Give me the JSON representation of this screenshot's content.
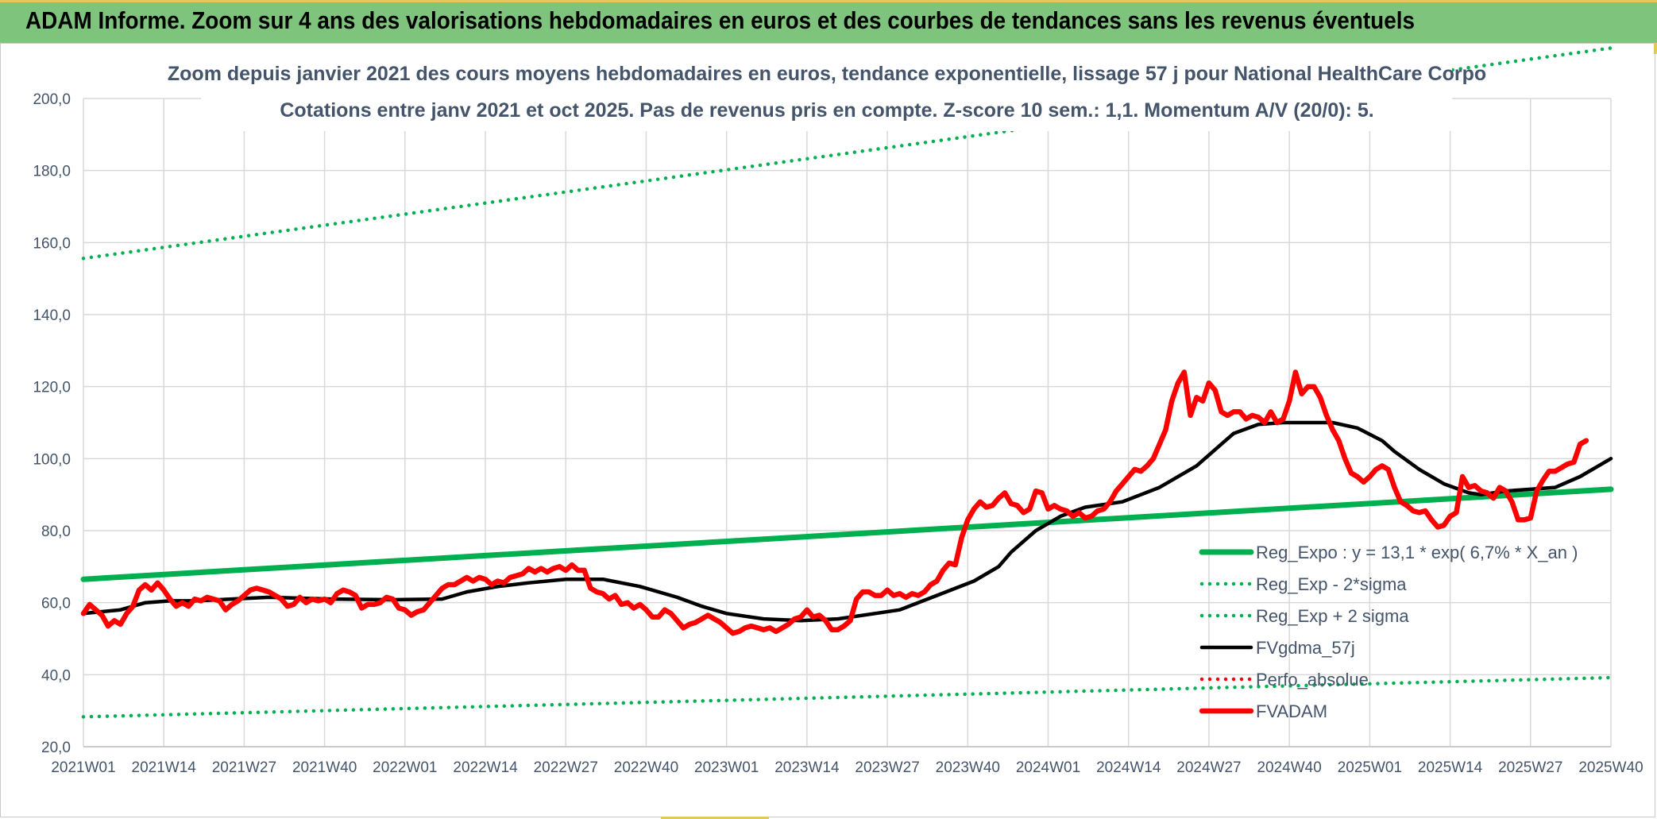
{
  "header": {
    "title": "ADAM Informe. Zoom sur 4 ans des valorisations hebdomadaires en euros et des courbes de tendances sans les revenus éventuels"
  },
  "colors": {
    "header_bg": "#7fc47d",
    "reg_expo": "#00b050",
    "fvgdma": "#000000",
    "fvadam": "#ff0000",
    "perfo": "#ff0000"
  },
  "chart_data": {
    "type": "line",
    "title": "Zoom depuis janvier 2021 des cours moyens hebdomadaires en euros, tendance exponentielle, lissage 57 j pour National HealthCare Corpo",
    "subtitle": "Cotations entre janv 2021 et oct 2025. Pas de revenus pris en compte. Z-score 10 sem.: 1,1. Momentum A/V (20/0): 5.",
    "xlabel": "",
    "ylabel": "",
    "ylim": [
      20,
      200
    ],
    "y_ticks": [
      "20,0",
      "40,0",
      "60,0",
      "80,0",
      "100,0",
      "120,0",
      "140,0",
      "160,0",
      "180,0",
      "200,0"
    ],
    "x_ticks": [
      "2021W01",
      "2021W14",
      "2021W27",
      "2021W40",
      "2022W01",
      "2022W14",
      "2022W27",
      "2022W40",
      "2023W01",
      "2023W14",
      "2023W27",
      "2023W40",
      "2024W01",
      "2024W14",
      "2024W27",
      "2024W40",
      "2025W01",
      "2025W14",
      "2025W27",
      "2025W40"
    ],
    "x_range_weeks": [
      0,
      247
    ],
    "grid": true,
    "legend_position": "bottom-right",
    "series": [
      {
        "name": "Reg_Expo : y = 13,1 * exp( 6,7% *  X_an )",
        "style": "solid",
        "color": "#00b050",
        "points": [
          [
            0,
            66.5
          ],
          [
            247,
            91.5
          ]
        ]
      },
      {
        "name": "Reg_Exp - 2*sigma",
        "style": "dotted",
        "color": "#00b050",
        "points": [
          [
            0,
            28.3
          ],
          [
            247,
            39.2
          ]
        ]
      },
      {
        "name": "Reg_Exp + 2 sigma",
        "style": "dotted",
        "color": "#00b050",
        "points": [
          [
            0,
            155.6
          ],
          [
            247,
            214
          ]
        ]
      },
      {
        "name": "FVgdma_57j",
        "style": "solid",
        "color": "#000000",
        "points": [
          [
            0,
            57
          ],
          [
            6,
            58
          ],
          [
            10,
            60
          ],
          [
            14,
            60.5
          ],
          [
            18,
            60.5
          ],
          [
            24,
            61
          ],
          [
            30,
            61.5
          ],
          [
            40,
            61
          ],
          [
            50,
            60.8
          ],
          [
            58,
            61
          ],
          [
            62,
            63
          ],
          [
            67,
            64.5
          ],
          [
            72,
            65.5
          ],
          [
            78,
            66.5
          ],
          [
            84,
            66.5
          ],
          [
            90,
            64.5
          ],
          [
            96,
            61.5
          ],
          [
            100,
            59
          ],
          [
            104,
            57
          ],
          [
            110,
            55.5
          ],
          [
            116,
            55
          ],
          [
            122,
            55.5
          ],
          [
            128,
            57
          ],
          [
            132,
            58
          ],
          [
            138,
            62
          ],
          [
            144,
            66
          ],
          [
            148,
            70
          ],
          [
            150,
            74
          ],
          [
            154,
            80
          ],
          [
            158,
            84
          ],
          [
            162,
            86.5
          ],
          [
            168,
            88
          ],
          [
            174,
            92
          ],
          [
            180,
            98
          ],
          [
            184,
            104
          ],
          [
            186,
            107
          ],
          [
            190,
            109.5
          ],
          [
            194,
            110
          ],
          [
            198,
            110
          ],
          [
            202,
            110
          ],
          [
            206,
            108.5
          ],
          [
            210,
            105
          ],
          [
            212,
            102
          ],
          [
            216,
            97
          ],
          [
            220,
            93
          ],
          [
            224,
            90.5
          ],
          [
            226,
            90
          ],
          [
            230,
            91
          ],
          [
            234,
            91.5
          ],
          [
            238,
            92
          ],
          [
            242,
            95
          ],
          [
            245,
            98
          ],
          [
            247,
            100
          ]
        ]
      },
      {
        "name": "Perfo_absolue",
        "style": "dotted",
        "color": "#ff0000",
        "points": []
      },
      {
        "name": "FVADAM",
        "style": "solid",
        "color": "#ff0000",
        "points": [
          [
            0,
            57
          ],
          [
            1,
            59.5
          ],
          [
            2,
            58
          ],
          [
            3,
            56.5
          ],
          [
            4,
            53.5
          ],
          [
            5,
            55
          ],
          [
            6,
            54
          ],
          [
            7,
            57
          ],
          [
            8,
            59
          ],
          [
            9,
            63.5
          ],
          [
            10,
            65
          ],
          [
            11,
            63.5
          ],
          [
            12,
            65.5
          ],
          [
            13,
            63.5
          ],
          [
            14,
            61
          ],
          [
            15,
            59
          ],
          [
            16,
            60
          ],
          [
            17,
            59
          ],
          [
            18,
            61
          ],
          [
            19,
            60.5
          ],
          [
            20,
            61.5
          ],
          [
            21,
            61
          ],
          [
            22,
            60.5
          ],
          [
            23,
            58
          ],
          [
            24,
            59.5
          ],
          [
            25,
            60.5
          ],
          [
            26,
            62
          ],
          [
            27,
            63.5
          ],
          [
            28,
            64
          ],
          [
            29,
            63.5
          ],
          [
            30,
            63
          ],
          [
            31,
            62
          ],
          [
            32,
            61
          ],
          [
            33,
            59
          ],
          [
            34,
            59.5
          ],
          [
            35,
            61.5
          ],
          [
            36,
            60
          ],
          [
            37,
            61
          ],
          [
            38,
            60.5
          ],
          [
            39,
            61
          ],
          [
            40,
            60
          ],
          [
            41,
            62.5
          ],
          [
            42,
            63.5
          ],
          [
            43,
            63
          ],
          [
            44,
            62
          ],
          [
            45,
            58.5
          ],
          [
            46,
            59.5
          ],
          [
            47,
            59.5
          ],
          [
            48,
            60
          ],
          [
            49,
            61.5
          ],
          [
            50,
            61
          ],
          [
            51,
            58.5
          ],
          [
            52,
            58
          ],
          [
            53,
            56.5
          ],
          [
            54,
            57.5
          ],
          [
            55,
            58
          ],
          [
            56,
            60
          ],
          [
            57,
            62
          ],
          [
            58,
            64
          ],
          [
            59,
            65
          ],
          [
            60,
            65
          ],
          [
            61,
            66
          ],
          [
            62,
            67
          ],
          [
            63,
            66
          ],
          [
            64,
            67
          ],
          [
            65,
            66.5
          ],
          [
            66,
            65
          ],
          [
            67,
            66
          ],
          [
            68,
            65.5
          ],
          [
            69,
            67
          ],
          [
            70,
            67.5
          ],
          [
            71,
            68
          ],
          [
            72,
            69.5
          ],
          [
            73,
            68.5
          ],
          [
            74,
            69.5
          ],
          [
            75,
            68.5
          ],
          [
            76,
            69.5
          ],
          [
            77,
            70
          ],
          [
            78,
            69
          ],
          [
            79,
            70.5
          ],
          [
            80,
            69
          ],
          [
            81,
            69
          ],
          [
            82,
            64
          ],
          [
            83,
            63
          ],
          [
            84,
            62.5
          ],
          [
            85,
            61
          ],
          [
            86,
            62
          ],
          [
            87,
            59.5
          ],
          [
            88,
            60
          ],
          [
            89,
            58.5
          ],
          [
            90,
            59.5
          ],
          [
            91,
            58
          ],
          [
            92,
            56
          ],
          [
            93,
            56
          ],
          [
            94,
            58
          ],
          [
            95,
            57
          ],
          [
            96,
            55
          ],
          [
            97,
            53
          ],
          [
            98,
            54
          ],
          [
            99,
            54.5
          ],
          [
            100,
            55.5
          ],
          [
            101,
            56.5
          ],
          [
            102,
            55.5
          ],
          [
            103,
            54.5
          ],
          [
            104,
            53
          ],
          [
            105,
            51.5
          ],
          [
            106,
            52
          ],
          [
            107,
            53
          ],
          [
            108,
            53.5
          ],
          [
            109,
            53
          ],
          [
            110,
            52.5
          ],
          [
            111,
            53
          ],
          [
            112,
            52
          ],
          [
            113,
            53
          ],
          [
            114,
            54
          ],
          [
            115,
            55.5
          ],
          [
            116,
            56
          ],
          [
            117,
            58
          ],
          [
            118,
            56
          ],
          [
            119,
            56.5
          ],
          [
            120,
            55
          ],
          [
            121,
            52.5
          ],
          [
            122,
            52.5
          ],
          [
            123,
            53.5
          ],
          [
            124,
            55
          ],
          [
            125,
            61
          ],
          [
            126,
            63
          ],
          [
            127,
            63
          ],
          [
            128,
            62
          ],
          [
            129,
            62
          ],
          [
            130,
            63.5
          ],
          [
            131,
            62
          ],
          [
            132,
            62.5
          ],
          [
            133,
            61.5
          ],
          [
            134,
            62.5
          ],
          [
            135,
            62
          ],
          [
            136,
            63
          ],
          [
            137,
            65
          ],
          [
            138,
            66
          ],
          [
            139,
            69
          ],
          [
            140,
            71
          ],
          [
            141,
            70.5
          ],
          [
            142,
            78
          ],
          [
            143,
            83
          ],
          [
            144,
            86
          ],
          [
            145,
            88
          ],
          [
            146,
            86.5
          ],
          [
            147,
            87
          ],
          [
            148,
            89
          ],
          [
            149,
            90.5
          ],
          [
            150,
            87.5
          ],
          [
            151,
            87
          ],
          [
            152,
            85
          ],
          [
            153,
            86
          ],
          [
            154,
            91
          ],
          [
            155,
            90.5
          ],
          [
            156,
            86
          ],
          [
            157,
            87
          ],
          [
            158,
            86
          ],
          [
            159,
            85.5
          ],
          [
            160,
            84
          ],
          [
            161,
            85
          ],
          [
            162,
            83.5
          ],
          [
            163,
            84
          ],
          [
            164,
            85.5
          ],
          [
            165,
            86
          ],
          [
            166,
            88
          ],
          [
            167,
            91
          ],
          [
            168,
            93
          ],
          [
            169,
            95
          ],
          [
            170,
            97
          ],
          [
            171,
            96.5
          ],
          [
            172,
            98
          ],
          [
            173,
            100
          ],
          [
            174,
            104
          ],
          [
            175,
            108
          ],
          [
            176,
            116
          ],
          [
            177,
            121
          ],
          [
            178,
            124
          ],
          [
            179,
            112
          ],
          [
            180,
            117
          ],
          [
            181,
            116
          ],
          [
            182,
            121
          ],
          [
            183,
            119
          ],
          [
            184,
            113
          ],
          [
            185,
            112
          ],
          [
            186,
            113
          ],
          [
            187,
            113
          ],
          [
            188,
            111
          ],
          [
            189,
            112
          ],
          [
            190,
            111.5
          ],
          [
            191,
            110
          ],
          [
            192,
            113
          ],
          [
            193,
            110
          ],
          [
            194,
            111
          ],
          [
            195,
            116
          ],
          [
            196,
            124
          ],
          [
            197,
            118
          ],
          [
            198,
            120
          ],
          [
            199,
            120
          ],
          [
            200,
            117
          ],
          [
            201,
            112
          ],
          [
            202,
            108
          ],
          [
            203,
            105
          ],
          [
            204,
            100
          ],
          [
            205,
            96
          ],
          [
            206,
            95
          ],
          [
            207,
            93.5
          ],
          [
            208,
            95
          ],
          [
            209,
            97
          ],
          [
            210,
            98
          ],
          [
            211,
            97
          ],
          [
            212,
            92
          ],
          [
            213,
            88
          ],
          [
            214,
            87
          ],
          [
            215,
            85.5
          ],
          [
            216,
            85
          ],
          [
            217,
            85.5
          ],
          [
            218,
            83
          ],
          [
            219,
            81
          ],
          [
            220,
            81.5
          ],
          [
            221,
            84
          ],
          [
            222,
            85
          ],
          [
            223,
            95
          ],
          [
            224,
            92
          ],
          [
            225,
            92.5
          ],
          [
            226,
            91
          ],
          [
            227,
            90.5
          ],
          [
            228,
            89
          ],
          [
            229,
            92
          ],
          [
            230,
            91
          ],
          [
            231,
            88
          ],
          [
            232,
            83
          ],
          [
            233,
            83
          ],
          [
            234,
            83.5
          ],
          [
            235,
            91
          ],
          [
            236,
            94
          ],
          [
            237,
            96.5
          ],
          [
            238,
            96.5
          ],
          [
            239,
            97.5
          ],
          [
            240,
            98.5
          ],
          [
            241,
            99
          ],
          [
            242,
            104
          ],
          [
            243,
            105
          ]
        ]
      }
    ]
  }
}
